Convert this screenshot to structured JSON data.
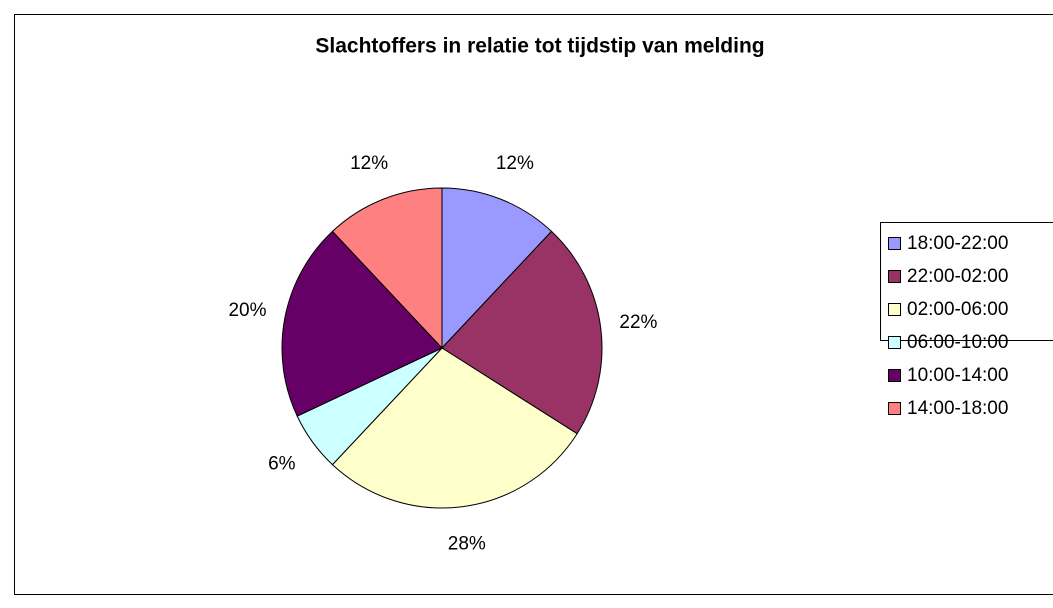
{
  "chart_data": {
    "type": "pie",
    "title": "Slachtoffers in relatie tot tijdstip van melding",
    "categories": [
      "18:00-22:00",
      "22:00-02:00",
      "02:00-06:00",
      "06:00-10:00",
      "10:00-14:00",
      "14:00-18:00"
    ],
    "values": [
      12,
      22,
      28,
      6,
      20,
      12
    ],
    "value_labels": [
      "12%",
      "22%",
      "28%",
      "6%",
      "20%",
      "12%"
    ],
    "colors": [
      "#9999ff",
      "#993366",
      "#ffffcc",
      "#ccffff",
      "#660066",
      "#ff8080"
    ],
    "legend": "right"
  }
}
